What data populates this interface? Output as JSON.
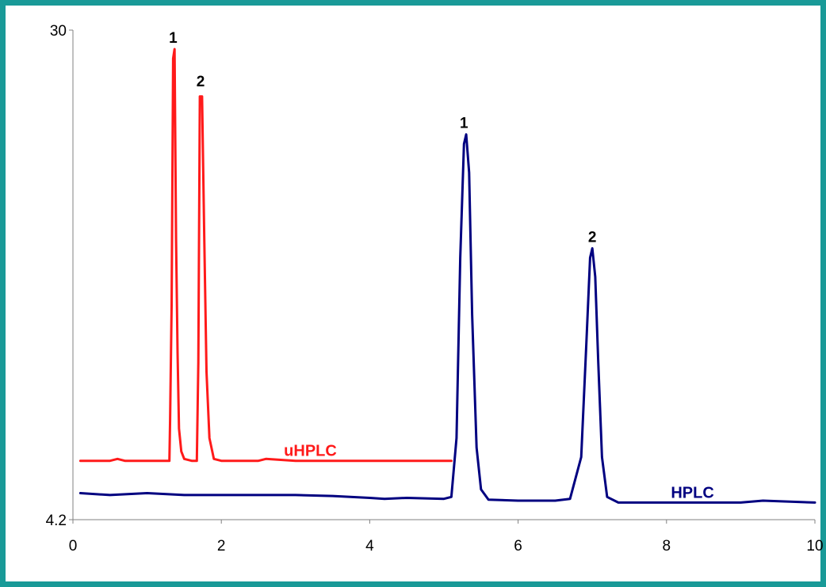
{
  "colors": {
    "frame": "#199a98",
    "uHPLC": "#ff1a1a",
    "HPLC": "#000080"
  },
  "chart_data": {
    "type": "line",
    "title": "",
    "xlabel": "",
    "ylabel": "",
    "xlim": [
      0,
      10
    ],
    "ylim": [
      4.2,
      30
    ],
    "grid": false,
    "legend": "none",
    "x_ticks": [
      "0",
      "2",
      "4",
      "6",
      "8",
      "10"
    ],
    "y_ticks": [
      "4.2",
      "30"
    ],
    "series": [
      {
        "name": "uHPLC",
        "color": "#ff1a1a",
        "x": [
          0.1,
          0.5,
          0.6,
          0.7,
          1.0,
          1.3,
          1.31,
          1.33,
          1.35,
          1.37,
          1.39,
          1.41,
          1.43,
          1.46,
          1.5,
          1.6,
          1.67,
          1.69,
          1.71,
          1.74,
          1.77,
          1.8,
          1.84,
          1.9,
          2.0,
          2.5,
          2.6,
          3.0,
          4.0,
          5.1
        ],
        "values": [
          7.3,
          7.3,
          7.4,
          7.3,
          7.3,
          7.3,
          9.5,
          15.5,
          28.5,
          29.0,
          19.0,
          13.0,
          9.0,
          7.8,
          7.4,
          7.3,
          7.3,
          12.5,
          26.5,
          26.5,
          19.0,
          12.0,
          8.5,
          7.4,
          7.3,
          7.3,
          7.4,
          7.3,
          7.3,
          7.3
        ]
      },
      {
        "name": "HPLC",
        "color": "#000080",
        "x": [
          0.1,
          0.5,
          1.0,
          1.5,
          2.0,
          2.5,
          3.0,
          3.5,
          4.0,
          4.2,
          4.5,
          5.0,
          5.1,
          5.17,
          5.22,
          5.27,
          5.3,
          5.34,
          5.38,
          5.44,
          5.5,
          5.6,
          6.0,
          6.5,
          6.7,
          6.85,
          6.92,
          6.97,
          7.0,
          7.04,
          7.08,
          7.13,
          7.2,
          7.35,
          7.6,
          8.0,
          9.0,
          9.3,
          10.0
        ],
        "values": [
          5.6,
          5.5,
          5.6,
          5.5,
          5.5,
          5.5,
          5.5,
          5.45,
          5.35,
          5.3,
          5.35,
          5.3,
          5.4,
          8.5,
          18.0,
          24.0,
          24.5,
          22.5,
          15.0,
          8.0,
          5.8,
          5.25,
          5.2,
          5.2,
          5.3,
          7.5,
          13.5,
          18.0,
          18.5,
          17.0,
          12.5,
          7.5,
          5.4,
          5.1,
          5.1,
          5.1,
          5.1,
          5.2,
          5.1
        ]
      }
    ],
    "annotations": [
      {
        "text": "1",
        "x": 1.35,
        "y": 29.0
      },
      {
        "text": "2",
        "x": 1.72,
        "y": 26.7
      },
      {
        "text": "uHPLC",
        "x": 3.2,
        "y": 7.3
      },
      {
        "text": "1",
        "x": 5.27,
        "y": 24.5
      },
      {
        "text": "2",
        "x": 7.0,
        "y": 18.5
      },
      {
        "text": "HPLC",
        "x": 8.35,
        "y": 5.1
      }
    ]
  }
}
